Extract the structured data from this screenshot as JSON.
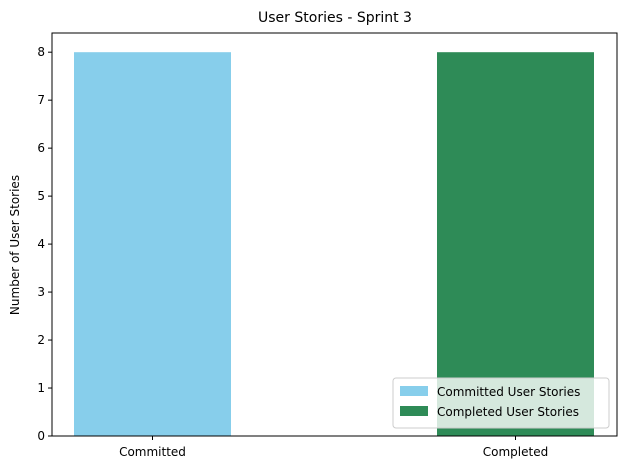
{
  "chart_data": {
    "type": "bar",
    "title": "User Stories - Sprint 3",
    "xlabel": "",
    "ylabel": "Number of User Stories",
    "categories": [
      "Committed",
      "Completed"
    ],
    "series": [
      {
        "name": "Committed User Stories",
        "values": [
          8,
          null
        ],
        "color": "#87CEEB"
      },
      {
        "name": "Completed User Stories",
        "values": [
          null,
          8
        ],
        "color": "#2E8B57"
      }
    ],
    "ylim": [
      0,
      8.4
    ],
    "yticks": [
      0,
      1,
      2,
      3,
      4,
      5,
      6,
      7,
      8
    ],
    "grid": false,
    "legend_position": "lower-right"
  }
}
